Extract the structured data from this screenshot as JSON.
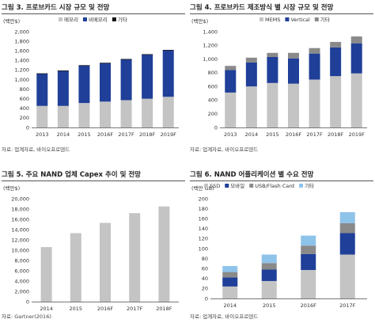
{
  "colors": {
    "grey": "#c4c4c4",
    "navy": "#1f3f98",
    "black": "#111111",
    "lightblue": "#8ec3ea",
    "midgrey": "#8a8a8a"
  },
  "panels": [
    {
      "title": "그림 3. 프로브카드 시장 규모 및 전망",
      "source": "자료: 업계자료, 바이오프로덴드",
      "chart_data": {
        "type": "bar",
        "stacked": true,
        "ylabel": "(백만$)",
        "ylim": [
          0,
          2000
        ],
        "yticks": [
          0,
          200,
          400,
          600,
          800,
          1000,
          1200,
          1400,
          1600,
          1800,
          2000
        ],
        "ytick_labels": [
          "0",
          "200",
          "400",
          "600",
          "800",
          "1,000",
          "1,200",
          "1,400",
          "1,600",
          "1,800",
          "2,000"
        ],
        "categories": [
          "2013",
          "2014",
          "2015",
          "2016F",
          "2017F",
          "2018F",
          "2019F"
        ],
        "legend": [
          "메모리",
          "비메모리",
          "기타"
        ],
        "legend_position": "top",
        "series": [
          {
            "name": "메모리",
            "color": "#c4c4c4",
            "values": [
              450,
              450,
              510,
              540,
              570,
              600,
              640
            ]
          },
          {
            "name": "비메모리",
            "color": "#1f3f98",
            "values": [
              670,
              730,
              780,
              800,
              850,
              920,
              970
            ]
          },
          {
            "name": "기타",
            "color": "#111111",
            "values": [
              10,
              10,
              10,
              10,
              10,
              10,
              10
            ]
          }
        ]
      }
    },
    {
      "title": "그림 4. 프로브카드 제조방식 별 시장 규모 및 전망",
      "source": "자료: 업계자료, 바이오프로덴드",
      "chart_data": {
        "type": "bar",
        "stacked": true,
        "ylabel": "(백만$)",
        "ylim": [
          0,
          1400
        ],
        "yticks": [
          0,
          200,
          400,
          600,
          800,
          1000,
          1200,
          1400
        ],
        "ytick_labels": [
          "0",
          "200",
          "400",
          "600",
          "800",
          "1,000",
          "1,200",
          "1,400"
        ],
        "categories": [
          "2013",
          "2014",
          "2015",
          "2016F",
          "2017F",
          "2018F",
          "2019F"
        ],
        "legend": [
          "MEMS",
          "Vertical",
          "기타"
        ],
        "legend_position": "top",
        "series": [
          {
            "name": "MEMS",
            "color": "#c4c4c4",
            "values": [
              510,
              600,
              650,
              640,
              700,
              750,
              790
            ]
          },
          {
            "name": "Vertical",
            "color": "#1f3f98",
            "values": [
              330,
              350,
              380,
              370,
              380,
              420,
              440
            ]
          },
          {
            "name": "기타",
            "color": "#8a8a8a",
            "values": [
              60,
              70,
              60,
              80,
              80,
              80,
              100
            ]
          }
        ]
      }
    },
    {
      "title": "그림 5. 주요 NAND 업체 Capex 추이 및 전망",
      "source": "자료: Gartner(2016)",
      "chart_data": {
        "type": "bar",
        "stacked": false,
        "ylabel": "(백만$)",
        "ylim": [
          0,
          20000
        ],
        "yticks": [
          0,
          2000,
          4000,
          6000,
          8000,
          10000,
          12000,
          14000,
          16000,
          18000,
          20000
        ],
        "ytick_labels": [
          "0",
          "2,000",
          "4,000",
          "6,000",
          "8,000",
          "10,000",
          "12,000",
          "14,000",
          "16,000",
          "18,000",
          "20,000"
        ],
        "categories": [
          "2014",
          "2015",
          "2016F",
          "2017F",
          "2018F"
        ],
        "legend": [],
        "series": [
          {
            "color": "#c4c4c4",
            "values": [
              10600,
              13300,
              15300,
              17200,
              18500
            ]
          }
        ]
      }
    },
    {
      "title": "그림 6. NAND 어플리케이션 별 수요 전망",
      "source": "자료: 업계자료, 바이오프로덴드",
      "chart_data": {
        "type": "bar",
        "stacked": true,
        "ylabel": "(백만 GB)",
        "ylim": [
          0,
          200
        ],
        "yticks": [
          0,
          20,
          40,
          60,
          80,
          100,
          120,
          140,
          160,
          180,
          200
        ],
        "ytick_labels": [
          "0",
          "20",
          "40",
          "60",
          "80",
          "100",
          "120",
          "140",
          "160",
          "180",
          "200"
        ],
        "categories": [
          "2014",
          "2015",
          "2016F",
          "2017F"
        ],
        "legend": [
          "SSD",
          "모바일",
          "USB/Flash Card",
          "기타"
        ],
        "legend_position": "top",
        "series": [
          {
            "name": "SSD",
            "color": "#c4c4c4",
            "values": [
              24,
              35,
              57,
              88
            ]
          },
          {
            "name": "모바일",
            "color": "#1f3f98",
            "values": [
              18,
              23,
              32,
              43
            ]
          },
          {
            "name": "USB/Flash Card",
            "color": "#8a8a8a",
            "values": [
              11,
              13,
              17,
              20
            ]
          },
          {
            "name": "기타",
            "color": "#8ec3ea",
            "values": [
              12,
              17,
              20,
              22
            ]
          }
        ]
      }
    }
  ]
}
